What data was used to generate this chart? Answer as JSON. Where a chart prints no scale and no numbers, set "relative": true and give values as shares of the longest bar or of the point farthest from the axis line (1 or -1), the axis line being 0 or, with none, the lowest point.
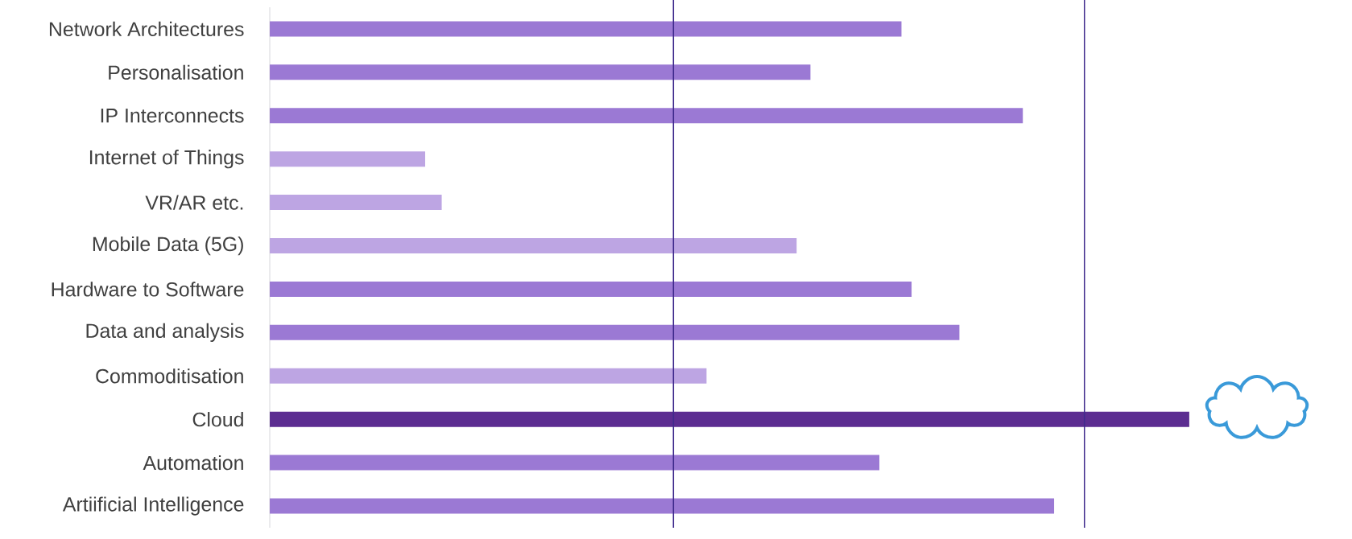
{
  "chart_data": {
    "type": "bar",
    "orientation": "horizontal",
    "relative": true,
    "categories": [
      "Network Architectures",
      "Personalisation",
      "IP Interconnects",
      "Internet of Things",
      "VR/AR etc.",
      "Mobile Data (5G)",
      "Hardware to Software",
      "Data and analysis",
      "Commoditisation",
      "Cloud",
      "Automation",
      "Artiificial Intelligence"
    ],
    "values": [
      0.687,
      0.588,
      0.819,
      0.169,
      0.187,
      0.573,
      0.698,
      0.75,
      0.475,
      1,
      0.663,
      0.853
    ],
    "colors": [
      "#9b79d4",
      "#9b79d4",
      "#9b79d4",
      "#bda5e3",
      "#bda5e3",
      "#bda5e3",
      "#9b79d4",
      "#9b79d4",
      "#bda5e3",
      "#5c2d91",
      "#9b79d4",
      "#9b79d4"
    ],
    "ref_lines": [
      {
        "axis": "x",
        "value": 0.439,
        "color": "#3f2a8c"
      },
      {
        "axis": "x",
        "value": 0.886,
        "color": "#3f2a8c"
      }
    ]
  }
}
